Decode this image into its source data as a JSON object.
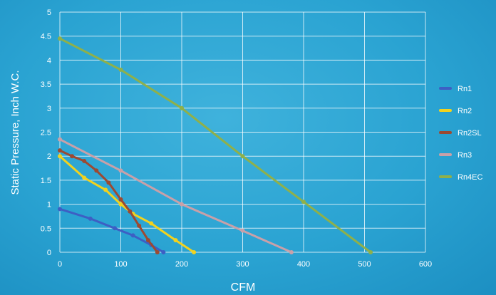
{
  "colors": {
    "background": "#2aa3d2",
    "grid": "#ffffff",
    "text": "#ffffff"
  },
  "chart_data": {
    "type": "line",
    "title": "",
    "xlabel": "CFM",
    "ylabel": "Static Pressure, Inch W.C.",
    "xlim": [
      0,
      600
    ],
    "ylim": [
      0,
      5
    ],
    "xticks": [
      0,
      100,
      200,
      300,
      400,
      500,
      600
    ],
    "yticks": [
      0,
      0.5,
      1,
      1.5,
      2,
      2.5,
      3,
      3.5,
      4,
      4.5,
      5
    ],
    "ytick_labels": [
      "0",
      "0.5",
      "1",
      "1.5",
      "2",
      "2.5",
      "3",
      "3.5",
      "4",
      "4.5",
      "5"
    ],
    "grid": true,
    "legend_position": "right",
    "series": [
      {
        "name": "Rn1",
        "color": "#3d5fc4",
        "points": [
          [
            0,
            0.9
          ],
          [
            50,
            0.7
          ],
          [
            90,
            0.5
          ],
          [
            120,
            0.35
          ],
          [
            150,
            0.15
          ],
          [
            170,
            0.0
          ]
        ]
      },
      {
        "name": "Rn2",
        "color": "#f2d21e",
        "points": [
          [
            0,
            2.0
          ],
          [
            40,
            1.55
          ],
          [
            75,
            1.3
          ],
          [
            100,
            1.0
          ],
          [
            120,
            0.8
          ],
          [
            150,
            0.6
          ],
          [
            190,
            0.25
          ],
          [
            220,
            0.0
          ]
        ]
      },
      {
        "name": "Rn2SL",
        "color": "#9c4a32",
        "points": [
          [
            0,
            2.12
          ],
          [
            20,
            2.0
          ],
          [
            40,
            1.9
          ],
          [
            60,
            1.7
          ],
          [
            80,
            1.45
          ],
          [
            100,
            1.1
          ],
          [
            115,
            0.85
          ],
          [
            130,
            0.55
          ],
          [
            145,
            0.25
          ],
          [
            160,
            0.0
          ]
        ]
      },
      {
        "name": "Rn3",
        "color": "#c9a0a8",
        "points": [
          [
            0,
            2.35
          ],
          [
            100,
            1.7
          ],
          [
            200,
            1.0
          ],
          [
            300,
            0.45
          ],
          [
            380,
            0.0
          ]
        ]
      },
      {
        "name": "Rn4EC",
        "color": "#8fb04a",
        "points": [
          [
            0,
            4.45
          ],
          [
            100,
            3.8
          ],
          [
            200,
            3.0
          ],
          [
            300,
            2.0
          ],
          [
            400,
            1.05
          ],
          [
            510,
            0.0
          ]
        ]
      }
    ]
  }
}
